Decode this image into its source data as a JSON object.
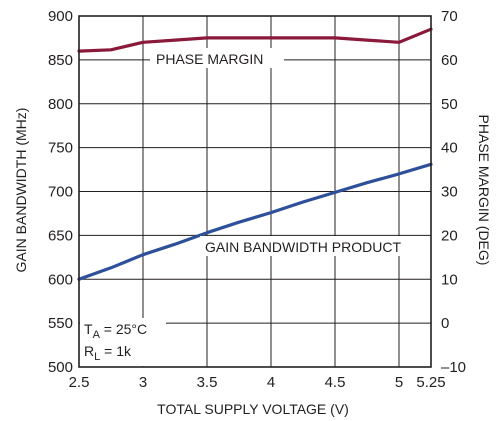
{
  "chart_data": {
    "type": "line",
    "xlabel": "TOTAL SUPPLY VOLTAGE (V)",
    "ylabel_left": "GAIN BANDWIDTH (MHz)",
    "ylabel_right": "PHASE MARGIN (DEG)",
    "xlim": [
      2.5,
      5.25
    ],
    "ylim_left": [
      500,
      900
    ],
    "ylim_right": [
      -10,
      70
    ],
    "x_ticks": [
      2.5,
      3,
      3.5,
      4,
      4.5,
      5,
      5.25
    ],
    "x_tick_labels": [
      "2.5",
      "3",
      "3.5",
      "4",
      "4.5",
      "5",
      "5.25"
    ],
    "y_left_ticks": [
      500,
      550,
      600,
      650,
      700,
      750,
      800,
      850,
      900
    ],
    "y_left_tick_labels": [
      "500",
      "550",
      "600",
      "650",
      "700",
      "750",
      "800",
      "850",
      "900"
    ],
    "y_right_ticks": [
      -10,
      0,
      10,
      20,
      30,
      40,
      50,
      60,
      70
    ],
    "y_right_tick_labels": [
      "–10",
      "0",
      "10",
      "20",
      "30",
      "40",
      "50",
      "60",
      "70"
    ],
    "grid": true,
    "series": [
      {
        "name": "PHASE MARGIN",
        "axis": "right",
        "color": "#8b1a3a",
        "x": [
          2.5,
          2.75,
          3.0,
          3.25,
          3.5,
          3.75,
          4.0,
          4.25,
          4.5,
          4.75,
          5.0,
          5.25
        ],
        "values": [
          62,
          62.3,
          64,
          64.5,
          65,
          65,
          65,
          65,
          65,
          64.5,
          64,
          67
        ]
      },
      {
        "name": "GAIN BANDWIDTH PRODUCT",
        "axis": "left",
        "color": "#2e4f9a",
        "x": [
          2.5,
          2.75,
          3.0,
          3.25,
          3.5,
          3.75,
          4.0,
          4.25,
          4.5,
          4.75,
          5.0,
          5.25
        ],
        "values": [
          600,
          613,
          628,
          640,
          653,
          665,
          676,
          688,
          699,
          710,
          720,
          731
        ]
      }
    ],
    "annotations": {
      "phase_label": "PHASE MARGIN",
      "gbw_label": "GAIN BANDWIDTH PRODUCT",
      "ta_main": "T",
      "ta_sub": "A",
      "ta_rest": " = 25°C",
      "rl_main": "R",
      "rl_sub": "L",
      "rl_rest": " = 1k"
    }
  }
}
